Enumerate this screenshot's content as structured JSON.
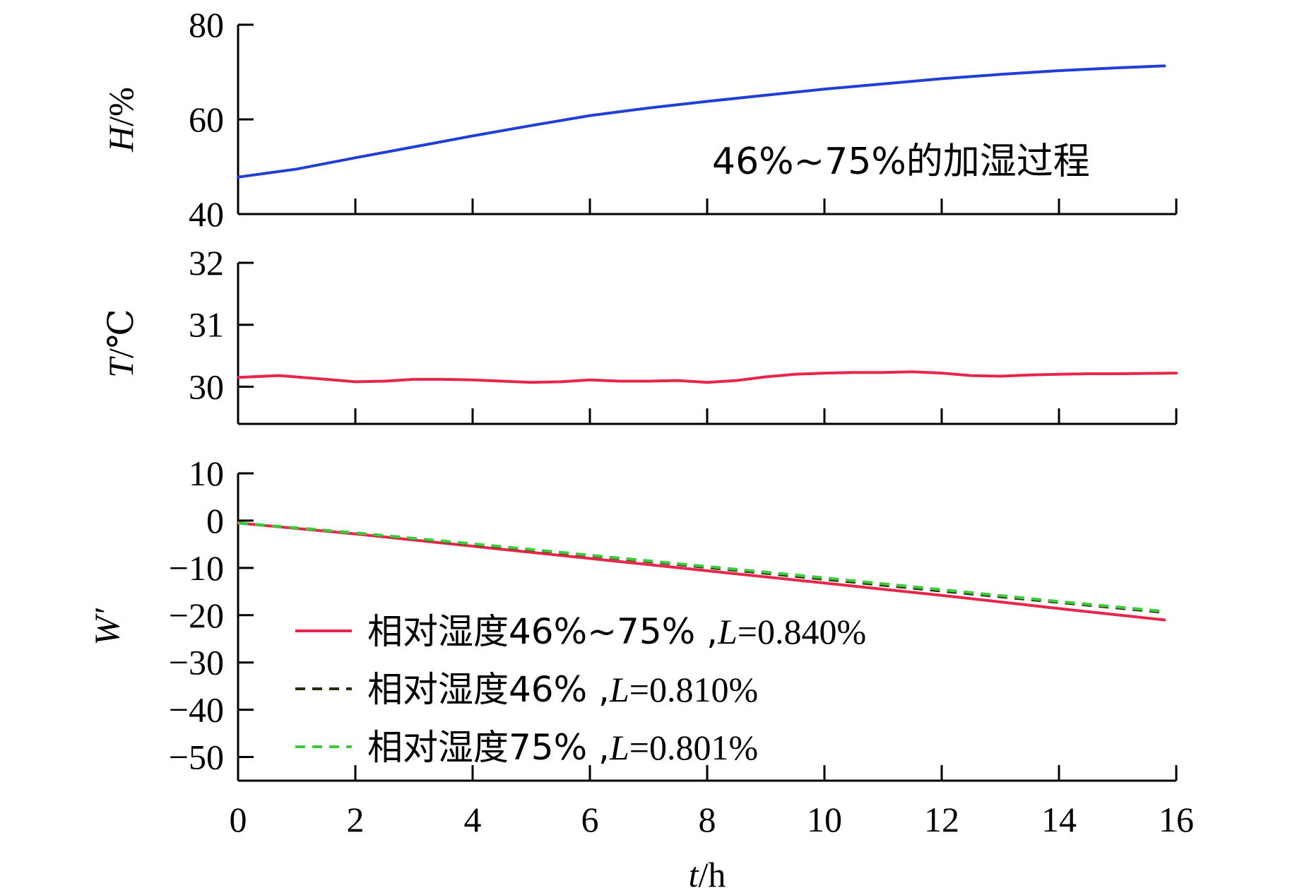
{
  "chart_data": [
    {
      "type": "line",
      "panel": "humidity",
      "ylabel_var": "H",
      "ylabel_unit": "/%",
      "ylim": [
        40,
        80
      ],
      "yticks": [
        40,
        60,
        80
      ],
      "xlim": [
        0,
        16
      ],
      "xticks": [
        0,
        2,
        4,
        6,
        8,
        10,
        12,
        14,
        16
      ],
      "annotation": "46%~75%的加湿过程",
      "grid": false,
      "series": [
        {
          "color": "#1f3fd6",
          "style": "solid",
          "x": [
            0,
            1,
            2,
            3,
            4,
            5,
            6,
            7,
            8,
            9,
            10,
            11,
            12,
            13,
            14,
            15,
            15.8
          ],
          "y": [
            47.8,
            49.5,
            51.9,
            54.2,
            56.5,
            58.7,
            60.8,
            62.4,
            63.8,
            65.1,
            66.4,
            67.5,
            68.6,
            69.5,
            70.3,
            70.9,
            71.3
          ]
        }
      ]
    },
    {
      "type": "line",
      "panel": "temperature",
      "ylabel_var": "T",
      "ylabel_unit": "/℃",
      "ylim": [
        29.4,
        32
      ],
      "yticks": [
        30,
        31,
        32
      ],
      "xlim": [
        0,
        16
      ],
      "xticks": [
        0,
        2,
        4,
        6,
        8,
        10,
        12,
        14,
        16
      ],
      "grid": false,
      "series": [
        {
          "color": "#e8264a",
          "style": "solid",
          "x": [
            0,
            0.7,
            1.5,
            2,
            2.5,
            3,
            3.5,
            4,
            4.5,
            5,
            5.5,
            6,
            6.5,
            7,
            7.5,
            8,
            8.5,
            9,
            9.5,
            10,
            10.5,
            11,
            11.5,
            12,
            12.5,
            13,
            13.5,
            14,
            14.5,
            15,
            16
          ],
          "y": [
            30.15,
            30.18,
            30.12,
            30.08,
            30.09,
            30.12,
            30.12,
            30.11,
            30.09,
            30.07,
            30.08,
            30.11,
            30.09,
            30.09,
            30.1,
            30.07,
            30.1,
            30.16,
            30.2,
            30.22,
            30.23,
            30.23,
            30.24,
            30.22,
            30.18,
            30.17,
            30.19,
            30.2,
            30.21,
            30.21,
            30.22
          ]
        }
      ]
    },
    {
      "type": "line",
      "panel": "strain",
      "ylabel_var": "W′",
      "ylim": [
        -55,
        10
      ],
      "yticks": [
        -50,
        -40,
        -30,
        -20,
        -10,
        0,
        10
      ],
      "yticklabels": [
        "−50",
        "−40",
        "−30",
        "−20",
        "−10",
        "0",
        "10"
      ],
      "xlabel_var": "t",
      "xlabel_unit": "/h",
      "xlim": [
        0,
        16
      ],
      "xticks": [
        0,
        2,
        4,
        6,
        8,
        10,
        12,
        14,
        16
      ],
      "grid": false,
      "legend_position": "lower-left",
      "series": [
        {
          "name_text": "相对湿度46%~75%",
          "name_sep": " ,",
          "name_var": "L",
          "name_value": "=0.840%",
          "color": "#e8264a",
          "style": "solid",
          "x": [
            0,
            2,
            4,
            6,
            8,
            10,
            12,
            14,
            15.8
          ],
          "y": [
            -0.5,
            -2.8,
            -5.4,
            -8.0,
            -10.6,
            -13.2,
            -15.8,
            -18.6,
            -21.0
          ]
        },
        {
          "name_text": "相对湿度46%",
          "name_sep": " ,",
          "name_var": "L",
          "name_value": "=0.810%",
          "color": "#2b2b00",
          "style": "dashed",
          "x": [
            0,
            2,
            4,
            6,
            8,
            10,
            12,
            14,
            15.8
          ],
          "y": [
            -0.5,
            -2.6,
            -5.0,
            -7.4,
            -9.9,
            -12.4,
            -14.9,
            -17.3,
            -19.4
          ]
        },
        {
          "name_text": "相对湿度75%",
          "name_sep": " ,",
          "name_var": "L",
          "name_value": "=0.801%",
          "color": "#3ccb3c",
          "style": "dashed",
          "x": [
            0,
            2,
            4,
            6,
            8,
            10,
            12,
            14,
            15.8
          ],
          "y": [
            -0.5,
            -2.6,
            -4.9,
            -7.3,
            -9.7,
            -12.1,
            -14.6,
            -17.1,
            -19.2
          ]
        }
      ]
    }
  ]
}
